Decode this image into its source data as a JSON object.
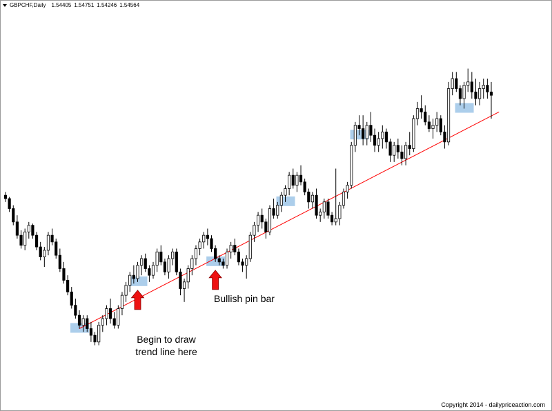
{
  "header": {
    "symbol_timeframe": "GBPCHF,Daily",
    "open": "1.54405",
    "high": "1.54751",
    "low": "1.54246",
    "close": "1.54564"
  },
  "annotations": {
    "begin_line1": "Begin to draw",
    "begin_line2": "trend line here",
    "pin_bar": "Bullish pin bar"
  },
  "copyright": "Copyright 2014 - dailypriceaction.com",
  "colors": {
    "bull_candle": "#ffffff",
    "bear_candle": "#000000",
    "trend_line": "#ff0000",
    "highlight": "#9ec5e8",
    "arrow": "#ee1111"
  },
  "chart_data": {
    "type": "candlestick",
    "symbol": "GBPCHF",
    "timeframe": "Daily",
    "ohlc": [
      [
        1.498,
        1.5,
        1.494,
        1.496
      ],
      [
        1.496,
        1.497,
        1.488,
        1.49
      ],
      [
        1.49,
        1.492,
        1.48,
        1.482
      ],
      [
        1.482,
        1.486,
        1.472,
        1.474
      ],
      [
        1.474,
        1.477,
        1.466,
        1.468
      ],
      [
        1.468,
        1.478,
        1.465,
        1.476
      ],
      [
        1.476,
        1.482,
        1.472,
        1.48
      ],
      [
        1.48,
        1.481,
        1.472,
        1.474
      ],
      [
        1.474,
        1.476,
        1.465,
        1.467
      ],
      [
        1.467,
        1.47,
        1.459,
        1.461
      ],
      [
        1.461,
        1.467,
        1.455,
        1.465
      ],
      [
        1.465,
        1.476,
        1.462,
        1.474
      ],
      [
        1.474,
        1.478,
        1.468,
        1.47
      ],
      [
        1.47,
        1.472,
        1.46,
        1.462
      ],
      [
        1.462,
        1.466,
        1.452,
        1.454
      ],
      [
        1.454,
        1.458,
        1.445,
        1.447
      ],
      [
        1.447,
        1.45,
        1.438,
        1.44
      ],
      [
        1.44,
        1.443,
        1.43,
        1.432
      ],
      [
        1.432,
        1.436,
        1.424,
        1.426
      ],
      [
        1.426,
        1.429,
        1.418,
        1.42
      ],
      [
        1.42,
        1.426,
        1.416,
        1.424
      ],
      [
        1.424,
        1.426,
        1.416,
        1.418
      ],
      [
        1.418,
        1.422,
        1.41,
        1.414
      ],
      [
        1.414,
        1.416,
        1.408,
        1.41
      ],
      [
        1.41,
        1.422,
        1.408,
        1.42
      ],
      [
        1.42,
        1.426,
        1.416,
        1.424
      ],
      [
        1.424,
        1.432,
        1.42,
        1.43
      ],
      [
        1.43,
        1.436,
        1.421,
        1.424
      ],
      [
        1.424,
        1.428,
        1.418,
        1.42
      ],
      [
        1.42,
        1.432,
        1.418,
        1.43
      ],
      [
        1.43,
        1.44,
        1.426,
        1.438
      ],
      [
        1.438,
        1.446,
        1.434,
        1.444
      ],
      [
        1.444,
        1.452,
        1.44,
        1.45
      ],
      [
        1.45,
        1.456,
        1.445,
        1.448
      ],
      [
        1.448,
        1.458,
        1.446,
        1.456
      ],
      [
        1.456,
        1.462,
        1.45,
        1.46
      ],
      [
        1.46,
        1.463,
        1.452,
        1.454
      ],
      [
        1.454,
        1.456,
        1.446,
        1.45
      ],
      [
        1.45,
        1.458,
        1.448,
        1.456
      ],
      [
        1.456,
        1.466,
        1.452,
        1.464
      ],
      [
        1.464,
        1.468,
        1.456,
        1.458
      ],
      [
        1.458,
        1.46,
        1.45,
        1.452
      ],
      [
        1.452,
        1.462,
        1.448,
        1.46
      ],
      [
        1.46,
        1.466,
        1.456,
        1.464
      ],
      [
        1.464,
        1.466,
        1.45,
        1.452
      ],
      [
        1.452,
        1.454,
        1.438,
        1.442
      ],
      [
        1.442,
        1.448,
        1.434,
        1.446
      ],
      [
        1.446,
        1.456,
        1.442,
        1.454
      ],
      [
        1.454,
        1.462,
        1.45,
        1.46
      ],
      [
        1.46,
        1.468,
        1.456,
        1.466
      ],
      [
        1.466,
        1.472,
        1.462,
        1.47
      ],
      [
        1.47,
        1.476,
        1.466,
        1.474
      ],
      [
        1.474,
        1.478,
        1.468,
        1.472
      ],
      [
        1.472,
        1.474,
        1.464,
        1.466
      ],
      [
        1.466,
        1.468,
        1.458,
        1.46
      ],
      [
        1.46,
        1.462,
        1.456,
        1.458
      ],
      [
        1.458,
        1.46,
        1.454,
        1.456
      ],
      [
        1.456,
        1.466,
        1.454,
        1.464
      ],
      [
        1.464,
        1.47,
        1.46,
        1.468
      ],
      [
        1.468,
        1.472,
        1.462,
        1.464
      ],
      [
        1.464,
        1.466,
        1.456,
        1.458
      ],
      [
        1.458,
        1.46,
        1.452,
        1.456
      ],
      [
        1.456,
        1.462,
        1.448,
        1.46
      ],
      [
        1.46,
        1.476,
        1.458,
        1.474
      ],
      [
        1.474,
        1.482,
        1.47,
        1.48
      ],
      [
        1.48,
        1.488,
        1.476,
        1.486
      ],
      [
        1.486,
        1.49,
        1.478,
        1.482
      ],
      [
        1.482,
        1.484,
        1.472,
        1.476
      ],
      [
        1.476,
        1.492,
        1.474,
        1.49
      ],
      [
        1.49,
        1.496,
        1.484,
        1.486
      ],
      [
        1.486,
        1.494,
        1.484,
        1.492
      ],
      [
        1.492,
        1.5,
        1.488,
        1.498
      ],
      [
        1.498,
        1.504,
        1.494,
        1.502
      ],
      [
        1.502,
        1.512,
        1.498,
        1.51
      ],
      [
        1.51,
        1.514,
        1.502,
        1.504
      ],
      [
        1.504,
        1.512,
        1.5,
        1.51
      ],
      [
        1.51,
        1.516,
        1.504,
        1.506
      ],
      [
        1.506,
        1.508,
        1.498,
        1.5
      ],
      [
        1.5,
        1.502,
        1.49,
        1.494
      ],
      [
        1.494,
        1.5,
        1.49,
        1.498
      ],
      [
        1.498,
        1.502,
        1.484,
        1.486
      ],
      [
        1.486,
        1.49,
        1.482,
        1.488
      ],
      [
        1.488,
        1.496,
        1.484,
        1.494
      ],
      [
        1.494,
        1.496,
        1.484,
        1.486
      ],
      [
        1.486,
        1.488,
        1.48,
        1.482
      ],
      [
        1.482,
        1.514,
        1.48,
        1.484
      ],
      [
        1.484,
        1.494,
        1.48,
        1.492
      ],
      [
        1.492,
        1.502,
        1.49,
        1.5
      ],
      [
        1.5,
        1.506,
        1.496,
        1.504
      ],
      [
        1.504,
        1.53,
        1.502,
        1.528
      ],
      [
        1.528,
        1.542,
        1.524,
        1.54
      ],
      [
        1.54,
        1.546,
        1.534,
        1.538
      ],
      [
        1.538,
        1.546,
        1.528,
        1.532
      ],
      [
        1.532,
        1.542,
        1.528,
        1.54
      ],
      [
        1.54,
        1.548,
        1.53,
        1.534
      ],
      [
        1.534,
        1.538,
        1.524,
        1.528
      ],
      [
        1.528,
        1.536,
        1.524,
        1.532
      ],
      [
        1.532,
        1.54,
        1.526,
        1.536
      ],
      [
        1.536,
        1.538,
        1.526,
        1.53
      ],
      [
        1.53,
        1.532,
        1.518,
        1.522
      ],
      [
        1.522,
        1.53,
        1.518,
        1.528
      ],
      [
        1.528,
        1.532,
        1.52,
        1.524
      ],
      [
        1.524,
        1.528,
        1.516,
        1.52
      ],
      [
        1.52,
        1.53,
        1.516,
        1.528
      ],
      [
        1.528,
        1.536,
        1.522,
        1.526
      ],
      [
        1.526,
        1.546,
        1.524,
        1.544
      ],
      [
        1.544,
        1.554,
        1.54,
        1.55
      ],
      [
        1.55,
        1.558,
        1.544,
        1.548
      ],
      [
        1.548,
        1.552,
        1.54,
        1.542
      ],
      [
        1.542,
        1.546,
        1.536,
        1.538
      ],
      [
        1.538,
        1.544,
        1.532,
        1.54
      ],
      [
        1.54,
        1.548,
        1.536,
        1.544
      ],
      [
        1.544,
        1.546,
        1.534,
        1.536
      ],
      [
        1.536,
        1.54,
        1.526,
        1.53
      ],
      [
        1.53,
        1.566,
        1.528,
        1.562
      ],
      [
        1.562,
        1.572,
        1.558,
        1.568
      ],
      [
        1.568,
        1.572,
        1.56,
        1.562
      ],
      [
        1.562,
        1.564,
        1.552,
        1.556
      ],
      [
        1.556,
        1.566,
        1.55,
        1.564
      ],
      [
        1.564,
        1.574,
        1.56,
        1.566
      ],
      [
        1.566,
        1.572,
        1.556,
        1.56
      ],
      [
        1.56,
        1.568,
        1.552,
        1.556
      ],
      [
        1.556,
        1.566,
        1.552,
        1.562
      ],
      [
        1.562,
        1.568,
        1.556,
        1.564
      ],
      [
        1.564,
        1.568,
        1.556,
        1.56
      ],
      [
        1.56,
        1.566,
        1.544,
        1.558
      ]
    ],
    "trend_line": {
      "start_index": 19,
      "start_price": 1.418,
      "end_index": 127,
      "end_price": 1.548
    },
    "highlight_indices": [
      19,
      34,
      54,
      72,
      91,
      118
    ],
    "annotations": [
      {
        "text_key": "begin",
        "index": 34
      },
      {
        "text_key": "pin_bar",
        "index": 54
      }
    ],
    "price_range": [
      1.4,
      1.58
    ]
  }
}
